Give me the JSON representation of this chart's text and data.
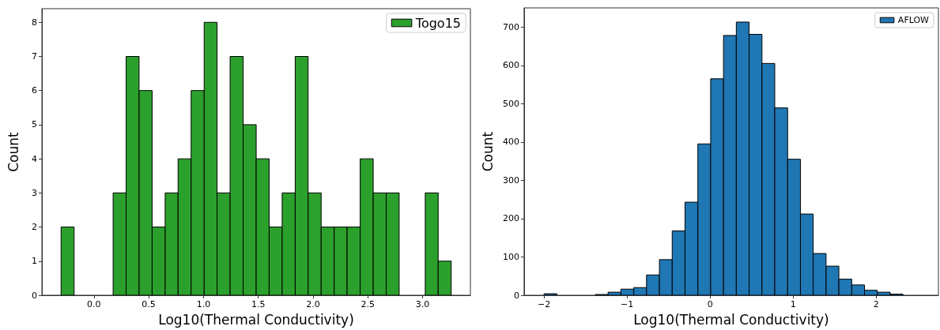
{
  "chart_data": [
    {
      "type": "histogram",
      "xlabel": "Log10(Thermal Conductivity)",
      "ylabel": "Count",
      "bins": [
        -0.3,
        -0.181,
        -0.063,
        0.056,
        0.175,
        0.294,
        0.412,
        0.531,
        0.65,
        0.768,
        0.887,
        1.006,
        1.124,
        1.243,
        1.362,
        1.481,
        1.599,
        1.718,
        1.837,
        1.955,
        2.074,
        2.193,
        2.311,
        2.43,
        2.549,
        2.668,
        2.786,
        2.905,
        3.024,
        3.142,
        3.261
      ],
      "series": [
        {
          "name": "Togo15",
          "color": "#2ca02c",
          "values": [
            2,
            0,
            0,
            0,
            3,
            7,
            6,
            2,
            3,
            4,
            6,
            8,
            3,
            7,
            5,
            4,
            2,
            3,
            7,
            3,
            2,
            2,
            2,
            4,
            3,
            3,
            0,
            0,
            3,
            1
          ]
        }
      ],
      "xlim": [
        -0.475,
        3.436
      ],
      "ylim": [
        0,
        8.4
      ],
      "xticks": [
        {
          "value": 0,
          "label": "0.0"
        },
        {
          "value": 0.5,
          "label": "0.5"
        },
        {
          "value": 1,
          "label": "1.0"
        },
        {
          "value": 1.5,
          "label": "1.5"
        },
        {
          "value": 2,
          "label": "2.0"
        },
        {
          "value": 2.5,
          "label": "2.5"
        },
        {
          "value": 3,
          "label": "3.0"
        }
      ],
      "yticks": [
        0,
        1,
        2,
        3,
        4,
        5,
        6,
        7,
        8
      ],
      "grid": false,
      "legend": "top right"
    },
    {
      "type": "histogram",
      "xlabel": "Log10(Thermal Conductivity)",
      "ylabel": "Count",
      "bins": [
        -2,
        -1.846,
        -1.691,
        -1.537,
        -1.382,
        -1.228,
        -1.074,
        -0.919,
        -0.765,
        -0.61,
        -0.456,
        -0.302,
        -0.147,
        0.007,
        0.162,
        0.316,
        0.47,
        0.625,
        0.779,
        0.934,
        1.088,
        1.242,
        1.397,
        1.551,
        1.706,
        1.86,
        2.014,
        2.169,
        2.323,
        2.478,
        2.632
      ],
      "series": [
        {
          "name": "AFLOW",
          "color": "#1f77b4",
          "values": [
            4,
            null,
            0,
            null,
            2,
            8,
            16,
            20,
            53,
            93,
            168,
            243,
            395,
            565,
            678,
            713,
            681,
            605,
            489,
            355,
            212,
            109,
            76,
            42,
            27,
            13,
            8,
            3,
            null,
            null
          ]
        }
      ],
      "xlim": [
        -2.24,
        2.75
      ],
      "ylim": [
        0,
        750
      ],
      "xticks": [
        {
          "value": -2,
          "label": "−2"
        },
        {
          "value": -1,
          "label": "−1"
        },
        0,
        1,
        2
      ],
      "yticks": [
        0,
        100,
        200,
        300,
        400,
        500,
        600,
        700
      ],
      "grid": false,
      "legend": "top right"
    }
  ]
}
